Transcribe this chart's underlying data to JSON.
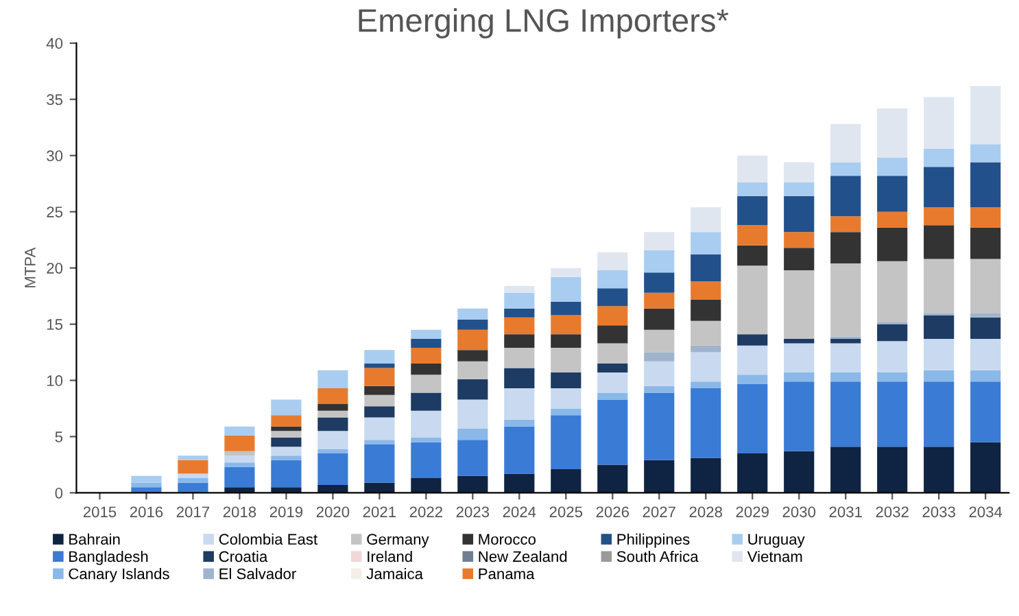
{
  "chart_data": {
    "type": "bar",
    "title": "Emerging LNG Importers*",
    "ylabel": "MTPA",
    "stacked": true,
    "categories": [
      "2015",
      "2016",
      "2017",
      "2018",
      "2019",
      "2020",
      "2021",
      "2022",
      "2023",
      "2024",
      "2025",
      "2026",
      "2027",
      "2028",
      "2029",
      "2030",
      "2031",
      "2032",
      "2033",
      "2034"
    ],
    "ylim": [
      0,
      40
    ],
    "yticks": [
      0,
      5,
      10,
      15,
      20,
      25,
      30,
      35,
      40
    ],
    "grid": false,
    "legend": "bottom",
    "series": [
      {
        "name": "Bahrain",
        "color": "#0f2342",
        "values": [
          0,
          0,
          0,
          0.5,
          0.5,
          0.7,
          0.9,
          1.3,
          1.5,
          1.7,
          2.1,
          2.5,
          2.9,
          3.1,
          3.5,
          3.7,
          4.1,
          4.1,
          4.1,
          4.5
        ]
      },
      {
        "name": "Bangladesh",
        "color": "#3a7bd5",
        "values": [
          0,
          0.5,
          0.9,
          1.8,
          2.4,
          2.8,
          3.4,
          3.2,
          3.2,
          4.2,
          4.8,
          5.8,
          6.0,
          6.2,
          6.2,
          6.2,
          5.8,
          5.8,
          5.8,
          5.4
        ]
      },
      {
        "name": "Canary Islands",
        "color": "#8ab8e8",
        "values": [
          0,
          0.4,
          0.4,
          0.4,
          0.4,
          0.4,
          0.4,
          0.4,
          1.0,
          0.6,
          0.6,
          0.6,
          0.6,
          0.6,
          0.8,
          0.8,
          0.8,
          0.8,
          1.0,
          1.0
        ]
      },
      {
        "name": "Colombia East",
        "color": "#c8d9f0",
        "values": [
          0,
          0,
          0.4,
          0.6,
          0.8,
          1.6,
          2.0,
          2.4,
          2.6,
          2.8,
          1.8,
          1.8,
          2.2,
          2.6,
          2.6,
          2.6,
          2.6,
          2.8,
          2.8,
          2.8
        ]
      },
      {
        "name": "Croatia",
        "color": "#1d3b63",
        "values": [
          0,
          0,
          0,
          0,
          0.8,
          1.2,
          1.0,
          1.6,
          1.8,
          1.8,
          1.4,
          0.8,
          0,
          0,
          1.0,
          0.4,
          0.4,
          1.5,
          2.1,
          1.9
        ]
      },
      {
        "name": "El Salvador",
        "color": "#9fb4cc",
        "values": [
          0,
          0,
          0,
          0,
          0,
          0,
          0,
          0,
          0,
          0,
          0,
          0,
          0.8,
          0.6,
          0,
          0,
          0.2,
          0.2,
          0.2,
          0.4
        ]
      },
      {
        "name": "Germany",
        "color": "#c4c4c4",
        "values": [
          0,
          0,
          0,
          0.4,
          0.6,
          0.6,
          1.0,
          1.6,
          1.6,
          1.8,
          2.2,
          1.8,
          2.0,
          2.2,
          6.1,
          6.1,
          6.5,
          5.4,
          4.8,
          4.8
        ]
      },
      {
        "name": "Ireland",
        "color": "#f0d8d8",
        "values": [
          0,
          0,
          0,
          0,
          0,
          0,
          0,
          0,
          0,
          0,
          0,
          0,
          0,
          0,
          0,
          0,
          0,
          0,
          0,
          0
        ]
      },
      {
        "name": "Jamaica",
        "color": "#f4efe6",
        "values": [
          0,
          0,
          0,
          0,
          0,
          0,
          0,
          0,
          0,
          0,
          0,
          0,
          0,
          0,
          0,
          0,
          0,
          0,
          0,
          0
        ]
      },
      {
        "name": "Morocco",
        "color": "#333333",
        "values": [
          0,
          0,
          0,
          0,
          0.4,
          0.6,
          0.8,
          1.0,
          1.0,
          1.2,
          1.2,
          1.6,
          1.9,
          1.9,
          1.8,
          2.0,
          2.8,
          3.0,
          3.0,
          2.8
        ]
      },
      {
        "name": "New Zealand",
        "color": "#6d7f91",
        "values": [
          0,
          0,
          0,
          0,
          0,
          0,
          0,
          0,
          0,
          0,
          0,
          0,
          0,
          0,
          0,
          0,
          0,
          0,
          0,
          0
        ]
      },
      {
        "name": "Panama",
        "color": "#e87a2e",
        "values": [
          0,
          0,
          1.2,
          1.4,
          1.0,
          1.4,
          1.6,
          1.4,
          1.8,
          1.5,
          1.7,
          1.7,
          1.4,
          1.6,
          1.8,
          1.4,
          1.4,
          1.4,
          1.6,
          1.8
        ]
      },
      {
        "name": "Philippines",
        "color": "#22508a",
        "values": [
          0,
          0,
          0,
          0,
          0,
          0,
          0.4,
          0.8,
          0.9,
          0.8,
          1.2,
          1.6,
          1.8,
          2.4,
          2.6,
          3.2,
          3.6,
          3.2,
          3.6,
          4.0
        ]
      },
      {
        "name": "South Africa",
        "color": "#9a9a9a",
        "values": [
          0,
          0,
          0,
          0,
          0,
          0,
          0,
          0,
          0,
          0,
          0,
          0,
          0,
          0,
          0,
          0,
          0,
          0,
          0,
          0
        ]
      },
      {
        "name": "Uruguay",
        "color": "#a9cdf0",
        "values": [
          0,
          0.6,
          0.4,
          0.8,
          1.4,
          1.6,
          1.2,
          0.8,
          1.0,
          1.4,
          2.2,
          1.6,
          2.0,
          2.0,
          1.2,
          1.2,
          1.2,
          1.6,
          1.6,
          1.6
        ]
      },
      {
        "name": "Vietnam",
        "color": "#dfe6f0",
        "values": [
          0,
          0,
          0,
          0,
          0,
          0,
          0,
          0,
          0,
          0.6,
          0.8,
          1.6,
          1.6,
          2.2,
          2.4,
          1.8,
          3.4,
          4.4,
          4.6,
          5.2
        ]
      }
    ]
  }
}
